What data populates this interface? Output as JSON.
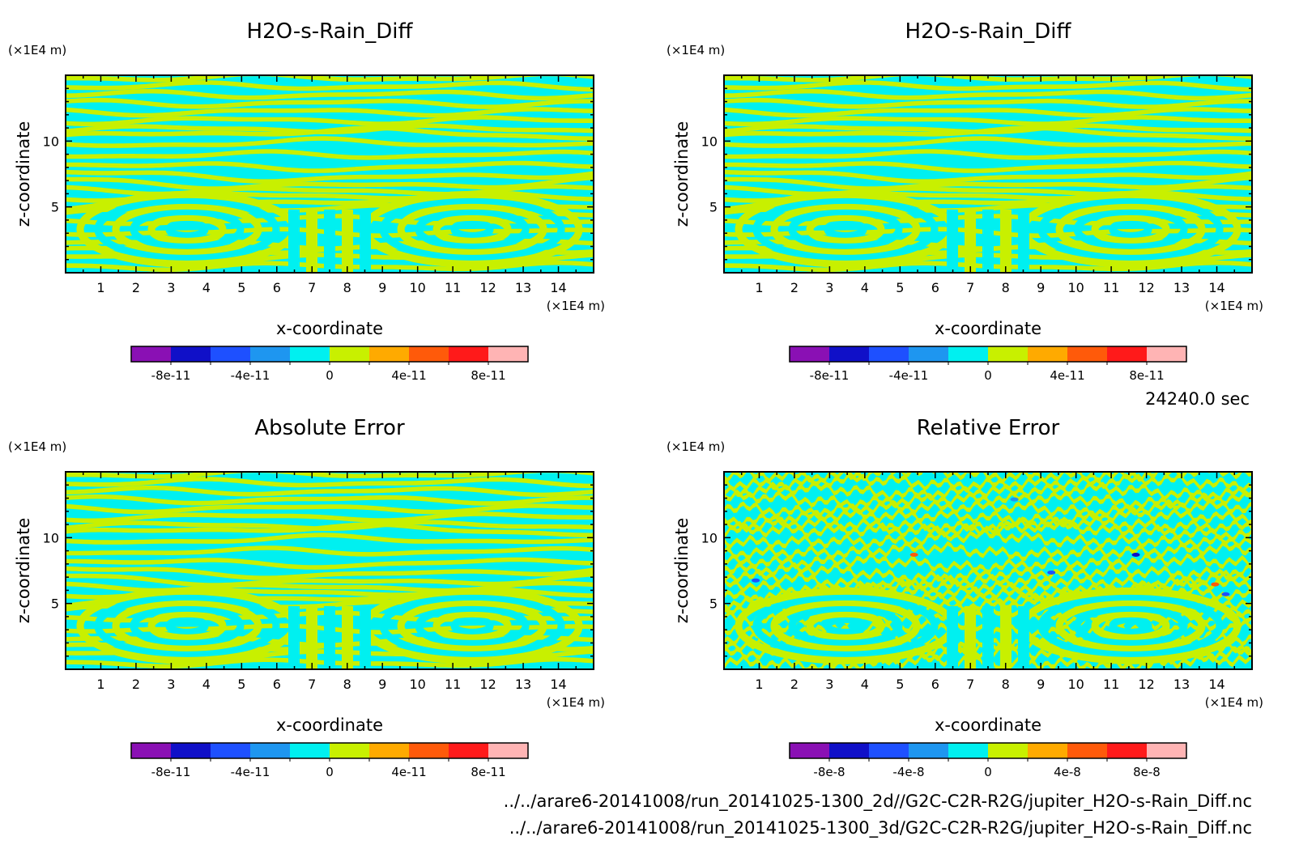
{
  "colors": {
    "levels": [
      "#8a10b4",
      "#1010c8",
      "#1e50ff",
      "#1e96f0",
      "#00f0f0",
      "#c8f000",
      "#ffaa00",
      "#ff5a0a",
      "#ff1a1a",
      "#ffb4b4"
    ],
    "field_a": "#c8f000",
    "field_b": "#00f0f0"
  },
  "time_label": "24240.0 sec",
  "footer": {
    "line1": "../../arare6-20141008/run_20141025-1300_2d//G2C-C2R-R2G/jupiter_H2O-s-Rain_Diff.nc",
    "line2": "../../arare6-20141008/run_20141025-1300_3d/G2C-C2R-R2G/jupiter_H2O-s-Rain_Diff.nc"
  },
  "chart_data": [
    {
      "type": "heatmap",
      "title": "H2O-s-Rain_Diff",
      "xlabel": "x-coordinate",
      "ylabel": "z-coordinate",
      "x_unit": "(×1E4 m)",
      "y_unit": "(×1E4 m)",
      "x_ticks": [
        "1",
        "2",
        "3",
        "4",
        "5",
        "6",
        "7",
        "8",
        "9",
        "10",
        "11",
        "12",
        "13",
        "14"
      ],
      "y_ticks": [
        "5",
        "10"
      ],
      "xlim": [
        0,
        15
      ],
      "ylim": [
        0,
        15
      ],
      "pattern": "smooth",
      "colorbar": {
        "levels": [
          -1e-10,
          -8e-11,
          -6e-11,
          -4e-11,
          -2e-11,
          0,
          2e-11,
          4e-11,
          6e-11,
          8e-11,
          1e-10
        ],
        "labels": [
          "-8e-11",
          "-4e-11",
          "0",
          "4e-11",
          "8e-11"
        ]
      }
    },
    {
      "type": "heatmap",
      "title": "H2O-s-Rain_Diff",
      "xlabel": "x-coordinate",
      "ylabel": "z-coordinate",
      "x_unit": "(×1E4 m)",
      "y_unit": "(×1E4 m)",
      "x_ticks": [
        "1",
        "2",
        "3",
        "4",
        "5",
        "6",
        "7",
        "8",
        "9",
        "10",
        "11",
        "12",
        "13",
        "14"
      ],
      "y_ticks": [
        "5",
        "10"
      ],
      "xlim": [
        0,
        15
      ],
      "ylim": [
        0,
        15
      ],
      "pattern": "smooth",
      "colorbar": {
        "levels": [
          -1e-10,
          -8e-11,
          -6e-11,
          -4e-11,
          -2e-11,
          0,
          2e-11,
          4e-11,
          6e-11,
          8e-11,
          1e-10
        ],
        "labels": [
          "-8e-11",
          "-4e-11",
          "0",
          "4e-11",
          "8e-11"
        ]
      }
    },
    {
      "type": "heatmap",
      "title": "Absolute Error",
      "xlabel": "x-coordinate",
      "ylabel": "z-coordinate",
      "x_unit": "(×1E4 m)",
      "y_unit": "(×1E4 m)",
      "x_ticks": [
        "1",
        "2",
        "3",
        "4",
        "5",
        "6",
        "7",
        "8",
        "9",
        "10",
        "11",
        "12",
        "13",
        "14"
      ],
      "y_ticks": [
        "5",
        "10"
      ],
      "xlim": [
        0,
        15
      ],
      "ylim": [
        0,
        15
      ],
      "pattern": "smooth",
      "colorbar": {
        "levels": [
          -1e-10,
          -8e-11,
          -6e-11,
          -4e-11,
          -2e-11,
          0,
          2e-11,
          4e-11,
          6e-11,
          8e-11,
          1e-10
        ],
        "labels": [
          "-8e-11",
          "-4e-11",
          "0",
          "4e-11",
          "8e-11"
        ]
      }
    },
    {
      "type": "heatmap",
      "title": "Relative Error",
      "xlabel": "x-coordinate",
      "ylabel": "z-coordinate",
      "x_unit": "(×1E4 m)",
      "y_unit": "(×1E4 m)",
      "x_ticks": [
        "1",
        "2",
        "3",
        "4",
        "5",
        "6",
        "7",
        "8",
        "9",
        "10",
        "11",
        "12",
        "13",
        "14"
      ],
      "y_ticks": [
        "5",
        "10"
      ],
      "xlim": [
        0,
        15
      ],
      "ylim": [
        0,
        15
      ],
      "pattern": "noisy",
      "colorbar": {
        "levels": [
          -1e-07,
          -8e-08,
          -6e-08,
          -4e-08,
          -2e-08,
          0,
          2e-08,
          4e-08,
          6e-08,
          8e-08,
          1e-07
        ],
        "labels": [
          "-8e-8",
          "-4e-8",
          "0",
          "4e-8",
          "8e-8"
        ]
      }
    }
  ]
}
